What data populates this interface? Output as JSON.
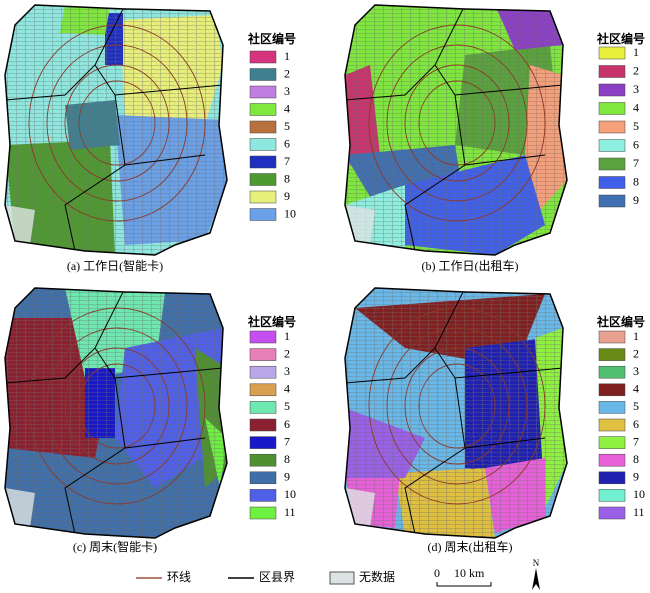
{
  "panels": [
    {
      "caption": "(a) 工作日(智能卡)",
      "legend_title": "社区编号",
      "legend": [
        {
          "label": "1",
          "color": "#d6337f"
        },
        {
          "label": "2",
          "color": "#3f7f8f"
        },
        {
          "label": "3",
          "color": "#c07fe0"
        },
        {
          "label": "4",
          "color": "#7fe83c"
        },
        {
          "label": "5",
          "color": "#b8703c"
        },
        {
          "label": "6",
          "color": "#8ee8e0"
        },
        {
          "label": "7",
          "color": "#1f2fc0"
        },
        {
          "label": "8",
          "color": "#4f9a30"
        },
        {
          "label": "9",
          "color": "#e8f07a"
        },
        {
          "label": "10",
          "color": "#6aa0e8"
        }
      ]
    },
    {
      "caption": "(b) 工作日(出租车)",
      "legend_title": "社区编号",
      "legend": [
        {
          "label": "1",
          "color": "#e8f03c"
        },
        {
          "label": "2",
          "color": "#c8336b"
        },
        {
          "label": "3",
          "color": "#8b3fc4"
        },
        {
          "label": "4",
          "color": "#7fe83c"
        },
        {
          "label": "5",
          "color": "#f5a07a"
        },
        {
          "label": "6",
          "color": "#8ef0e0"
        },
        {
          "label": "7",
          "color": "#5aa33c"
        },
        {
          "label": "8",
          "color": "#3f5fe8"
        },
        {
          "label": "9",
          "color": "#3f6fb0"
        }
      ]
    },
    {
      "caption": "(c) 周末(智能卡)",
      "legend_title": "社区编号",
      "legend": [
        {
          "label": "1",
          "color": "#c44ef0"
        },
        {
          "label": "2",
          "color": "#e87fb8"
        },
        {
          "label": "3",
          "color": "#b8a8e8"
        },
        {
          "label": "4",
          "color": "#d8a050"
        },
        {
          "label": "5",
          "color": "#6ee8b0"
        },
        {
          "label": "6",
          "color": "#8b2030"
        },
        {
          "label": "7",
          "color": "#1818c8"
        },
        {
          "label": "8",
          "color": "#4f9030"
        },
        {
          "label": "9",
          "color": "#3f6fa8"
        },
        {
          "label": "10",
          "color": "#4f5fe8"
        },
        {
          "label": "11",
          "color": "#6ef040"
        }
      ]
    },
    {
      "caption": "(d) 周末(出租车)",
      "legend_title": "社区编号",
      "legend": [
        {
          "label": "1",
          "color": "#e8a090"
        },
        {
          "label": "2",
          "color": "#6a8a18"
        },
        {
          "label": "3",
          "color": "#50c070"
        },
        {
          "label": "4",
          "color": "#802020"
        },
        {
          "label": "5",
          "color": "#6ab8e8"
        },
        {
          "label": "6",
          "color": "#e0c040"
        },
        {
          "label": "7",
          "color": "#8ef040"
        },
        {
          "label": "8",
          "color": "#e860d8"
        },
        {
          "label": "9",
          "color": "#2020b0"
        },
        {
          "label": "10",
          "color": "#70f0d0"
        },
        {
          "label": "11",
          "color": "#9a60e8"
        }
      ]
    }
  ],
  "footer": {
    "ring_road": "环线",
    "district_boundary": "区县界",
    "no_data": "无数据",
    "scale_zero": "0",
    "scale_label": "10 km",
    "north": "N"
  }
}
